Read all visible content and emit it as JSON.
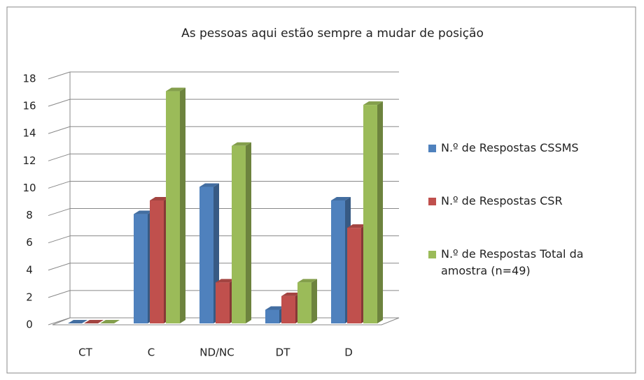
{
  "chart_data": {
    "type": "bar3d",
    "title": "As pessoas aqui estão sempre a mudar de posição",
    "categories": [
      "CT",
      "C",
      "ND/NC",
      "DT",
      "D"
    ],
    "series": [
      {
        "name": "N.º de Respostas CSSMS",
        "color": "#4f81bd",
        "values": [
          0,
          8,
          10,
          1,
          9
        ]
      },
      {
        "name": "N.º de Respostas CSR",
        "color": "#c0504d",
        "values": [
          0,
          9,
          3,
          2,
          7
        ]
      },
      {
        "name": "N.º de Respostas Total da amostra (n=49)",
        "color": "#9bbb59",
        "values": [
          0,
          17,
          13,
          3,
          16
        ]
      }
    ],
    "ylim": [
      0,
      18
    ],
    "yticks": [
      0,
      2,
      4,
      6,
      8,
      10,
      12,
      14,
      16,
      18
    ],
    "grid": true,
    "legend": "right"
  }
}
